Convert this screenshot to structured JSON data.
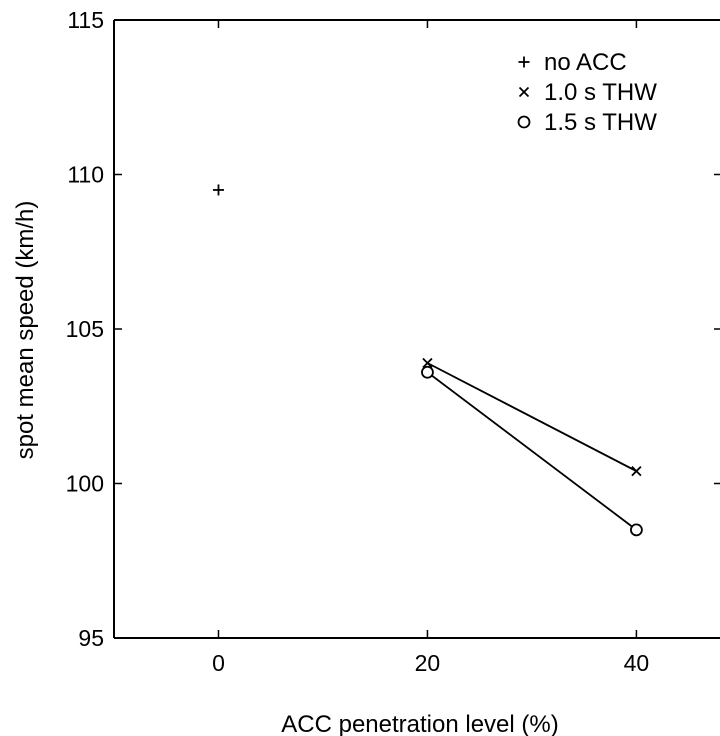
{
  "chart_data": {
    "type": "scatter",
    "title": "",
    "xlabel": "ACC penetration level (%)",
    "ylabel": "spot mean speed (km/h)",
    "xlim": [
      -10,
      48
    ],
    "ylim": [
      95,
      115
    ],
    "xticks": [
      0,
      20,
      40
    ],
    "yticks": [
      95,
      100,
      105,
      110,
      115
    ],
    "grid": false,
    "legend_position": "top-right",
    "series": [
      {
        "name": "no ACC",
        "marker": "plus",
        "connected": false,
        "points": [
          [
            0,
            109.5
          ]
        ]
      },
      {
        "name": "1.0 s THW",
        "marker": "cross",
        "connected": true,
        "points": [
          [
            20,
            103.9
          ],
          [
            40,
            100.4
          ]
        ]
      },
      {
        "name": "1.5 s THW",
        "marker": "circle",
        "connected": true,
        "points": [
          [
            20,
            103.6
          ],
          [
            40,
            98.5
          ]
        ]
      }
    ],
    "colors": {
      "ink": "#000000",
      "background": "#ffffff"
    }
  }
}
